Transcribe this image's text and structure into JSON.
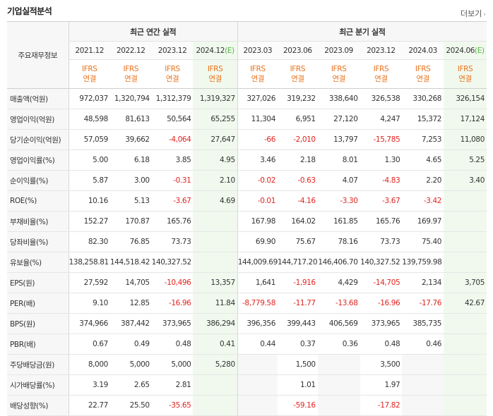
{
  "header": {
    "title": "기업실적분석",
    "more_label": "더보기",
    "more_arrow": "›"
  },
  "table": {
    "corner_label": "주요재무정보",
    "groups": {
      "annual": "최근 연간 실적",
      "quarter": "최근 분기 실적"
    },
    "periods": [
      {
        "label": "2021.12",
        "est": ""
      },
      {
        "label": "2022.12",
        "est": ""
      },
      {
        "label": "2023.12",
        "est": ""
      },
      {
        "label": "2024.12",
        "est": "(E)"
      },
      {
        "label": "2023.03",
        "est": ""
      },
      {
        "label": "2023.06",
        "est": ""
      },
      {
        "label": "2023.09",
        "est": ""
      },
      {
        "label": "2023.12",
        "est": ""
      },
      {
        "label": "2024.03",
        "est": ""
      },
      {
        "label": "2024.06",
        "est": "(E)"
      }
    ],
    "basis": {
      "line1": "IFRS",
      "line2": "연결"
    },
    "rows": [
      {
        "label": "매출액(억원)",
        "values": [
          "972,037",
          "1,320,794",
          "1,312,379",
          "1,319,327",
          "327,026",
          "319,232",
          "338,640",
          "326,538",
          "330,268",
          "326,154"
        ]
      },
      {
        "label": "영업이익(억원)",
        "values": [
          "48,598",
          "81,613",
          "50,564",
          "65,255",
          "11,304",
          "6,951",
          "27,120",
          "4,247",
          "15,372",
          "17,124"
        ]
      },
      {
        "label": "당기순이익(억원)",
        "values": [
          "57,059",
          "39,662",
          "-4,064",
          "27,647",
          "-66",
          "-2,010",
          "13,797",
          "-15,785",
          "7,253",
          "11,080"
        ]
      },
      {
        "label": "영업이익률(%)",
        "values": [
          "5.00",
          "6.18",
          "3.85",
          "4.95",
          "3.46",
          "2.18",
          "8.01",
          "1.30",
          "4.65",
          "5.25"
        ]
      },
      {
        "label": "순이익률(%)",
        "values": [
          "5.87",
          "3.00",
          "-0.31",
          "2.10",
          "-0.02",
          "-0.63",
          "4.07",
          "-4.83",
          "2.20",
          "3.40"
        ]
      },
      {
        "label": "ROE(%)",
        "values": [
          "10.16",
          "5.13",
          "-3.67",
          "4.69",
          "-0.01",
          "-4.16",
          "-3.30",
          "-3.67",
          "-3.42",
          ""
        ]
      },
      {
        "label": "부채비율(%)",
        "values": [
          "152.27",
          "170.87",
          "165.76",
          "",
          "167.98",
          "164.02",
          "161.85",
          "165.76",
          "169.97",
          ""
        ]
      },
      {
        "label": "당좌비율(%)",
        "values": [
          "82.30",
          "76.85",
          "73.73",
          "",
          "69.90",
          "75.67",
          "78.16",
          "73.73",
          "75.40",
          ""
        ]
      },
      {
        "label": "유보율(%)",
        "values": [
          "138,258.81",
          "144,518.42",
          "140,327.52",
          "",
          "144,009.69",
          "144,717.20",
          "146,406.70",
          "140,327.52",
          "139,759.98",
          ""
        ]
      },
      {
        "label": "EPS(원)",
        "values": [
          "27,592",
          "14,705",
          "-10,496",
          "13,357",
          "1,641",
          "-1,916",
          "4,429",
          "-14,705",
          "2,134",
          "3,705"
        ]
      },
      {
        "label": "PER(배)",
        "values": [
          "9.10",
          "12.85",
          "-16.96",
          "11.84",
          "-8,779.58",
          "-11.77",
          "-13.68",
          "-16.96",
          "-17.76",
          "42.67"
        ]
      },
      {
        "label": "BPS(원)",
        "values": [
          "374,966",
          "387,442",
          "373,965",
          "386,294",
          "396,356",
          "399,443",
          "406,569",
          "373,965",
          "385,735",
          ""
        ]
      },
      {
        "label": "PBR(배)",
        "values": [
          "0.67",
          "0.49",
          "0.48",
          "0.41",
          "0.44",
          "0.37",
          "0.36",
          "0.48",
          "0.46",
          ""
        ]
      },
      {
        "label": "주당배당금(원)",
        "values": [
          "8,000",
          "5,000",
          "5,000",
          "5,280",
          "",
          "1,500",
          "",
          "3,500",
          "",
          ""
        ]
      },
      {
        "label": "시가배당률(%)",
        "values": [
          "3.19",
          "2.65",
          "2.81",
          "",
          "",
          "1.01",
          "",
          "1.97",
          "",
          ""
        ]
      },
      {
        "label": "배당성향(%)",
        "values": [
          "22.77",
          "25.50",
          "-35.65",
          "",
          "",
          "-59.16",
          "",
          "-17.82",
          "",
          ""
        ]
      }
    ]
  },
  "colors": {
    "negative": "#e0241f",
    "basis": "#e8731d",
    "estimate_bg": "#f1f9ee",
    "estimate_mark": "#58b846"
  }
}
